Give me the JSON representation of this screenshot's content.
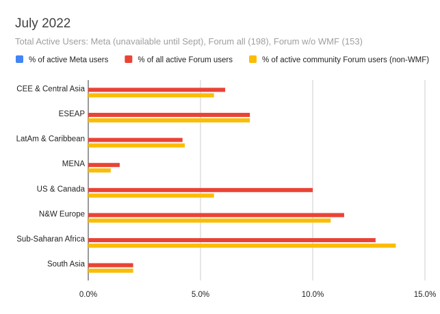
{
  "chart_data": {
    "type": "bar",
    "orientation": "horizontal",
    "title": "July 2022",
    "subtitle": "Total Active Users: Meta (unavailable until Sept), Forum all (198), Forum w/o WMF (153)",
    "categories": [
      "CEE & Central Asia",
      "ESEAP",
      "LatAm & Caribbean",
      "MENA",
      "US & Canada",
      "N&W Europe",
      "Sub-Saharan Africa",
      "South Asia"
    ],
    "series": [
      {
        "name": "% of active Meta users",
        "color": "#4285f4",
        "values": [
          null,
          null,
          null,
          null,
          null,
          null,
          null,
          null
        ]
      },
      {
        "name": "% of all active Forum users",
        "color": "#ea4335",
        "values": [
          6.1,
          7.2,
          4.2,
          1.4,
          10.0,
          11.4,
          12.8,
          2.0
        ]
      },
      {
        "name": "% of active community Forum users (non-WMF)",
        "color": "#fbbc04",
        "values": [
          5.6,
          7.2,
          4.3,
          1.0,
          5.6,
          10.8,
          13.7,
          2.0
        ]
      }
    ],
    "x_ticks": [
      "0.0%",
      "5.0%",
      "10.0%",
      "15.0%"
    ],
    "xlim": [
      0,
      15
    ],
    "grid": true,
    "legend_position": "top"
  }
}
